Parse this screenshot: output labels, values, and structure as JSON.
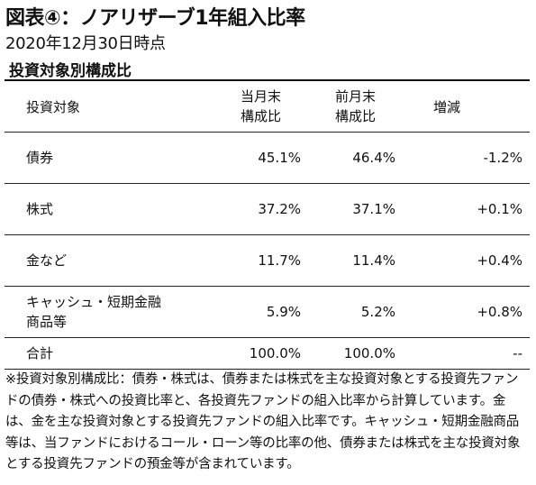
{
  "title": "図表④：ノアリザーブ1年組入比率",
  "subtitle": "2020年12月30日時点",
  "section_title": "投資対象別構成比",
  "table": {
    "headers": {
      "category": "投資対象",
      "current_line1": "当月末",
      "current_line2": "構成比",
      "previous_line1": "前月末",
      "previous_line2": "構成比",
      "change": "増減"
    },
    "rows": [
      {
        "category": "債券",
        "category_line2": "",
        "current": "45.1%",
        "previous": "46.4%",
        "change": "-1.2%"
      },
      {
        "category": "株式",
        "category_line2": "",
        "current": "37.2%",
        "previous": "37.1%",
        "change": "+0.1%"
      },
      {
        "category": "金など",
        "category_line2": "",
        "current": "11.7%",
        "previous": "11.4%",
        "change": "+0.4%"
      },
      {
        "category": "キャッシュ・短期金融",
        "category_line2": "商品等",
        "current": "5.9%",
        "previous": "5.2%",
        "change": "+0.8%"
      }
    ],
    "total": {
      "category": "合計",
      "current": "100.0%",
      "previous": "100.0%",
      "change": "--"
    }
  },
  "note": "※投資対象別構成比：債券・株式は、債券または株式を主な投資対象とする投資先ファンドの債券・株式への投資比率と、各投資先ファンドの組入比率から計算しています。金は、金を主な投資対象とする投資先ファンドの組入比率です。キャッシュ・短期金融商品等は、当ファンドにおけるコール・ローン等の比率の他、債券または株式を主な投資対象とする投資先ファンドの預金等が含まれています。"
}
